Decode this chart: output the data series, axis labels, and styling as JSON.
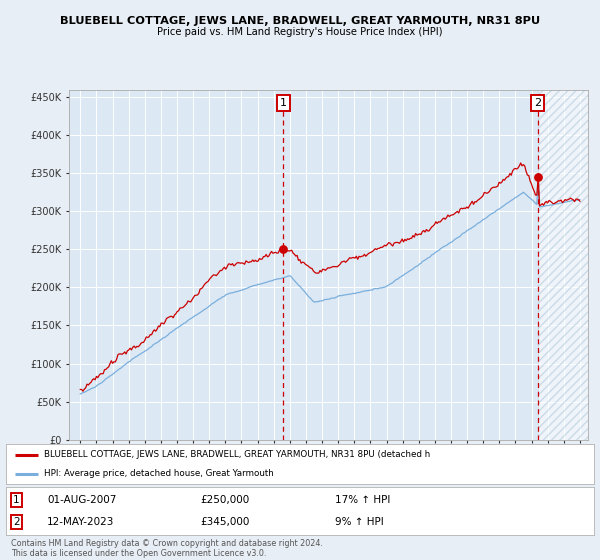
{
  "title": "BLUEBELL COTTAGE, JEWS LANE, BRADWELL, GREAT YARMOUTH, NR31 8PU",
  "subtitle": "Price paid vs. HM Land Registry's House Price Index (HPI)",
  "background_color": "#e8eef5",
  "plot_bg_color": "#dce8f4",
  "yticks": [
    0,
    50000,
    100000,
    150000,
    200000,
    250000,
    300000,
    350000,
    400000,
    450000
  ],
  "ylim": [
    0,
    460000
  ],
  "xstart_year": 1995,
  "xend_year": 2026,
  "red_line_color": "#cc0000",
  "blue_line_color": "#7aafdd",
  "marker1_date": 2007.6,
  "marker1_value": 250000,
  "marker2_date": 2023.37,
  "marker2_value": 345000,
  "legend_red_label": "BLUEBELL COTTAGE, JEWS LANE, BRADWELL, GREAT YARMOUTH, NR31 8PU (detached h",
  "legend_blue_label": "HPI: Average price, detached house, Great Yarmouth",
  "note1_date": "01-AUG-2007",
  "note1_price": "£250,000",
  "note1_hpi": "17% ↑ HPI",
  "note2_date": "12-MAY-2023",
  "note2_price": "£345,000",
  "note2_hpi": "9% ↑ HPI",
  "footer": "Contains HM Land Registry data © Crown copyright and database right 2024.\nThis data is licensed under the Open Government Licence v3.0."
}
